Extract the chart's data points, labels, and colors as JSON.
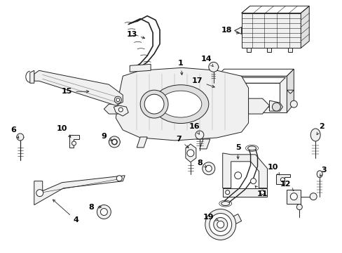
{
  "bg_color": "#ffffff",
  "line_color": "#222222",
  "label_color": "#000000",
  "fig_width": 4.89,
  "fig_height": 3.6,
  "dpi": 100
}
